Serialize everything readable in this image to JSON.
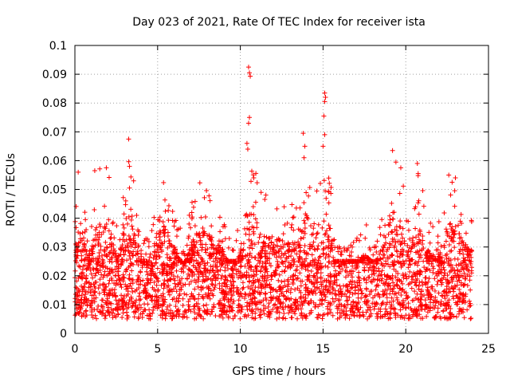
{
  "chart_data": {
    "type": "scatter",
    "title": "Day 023 of 2021, Rate Of TEC Index for receiver ista",
    "xlabel": "GPS time / hours",
    "ylabel": "ROTI / TECUs",
    "xlim": [
      0,
      25
    ],
    "ylim": [
      0,
      0.1
    ],
    "xticks": [
      0,
      5,
      10,
      15,
      20,
      25
    ],
    "yticks": [
      0,
      0.01,
      0.02,
      0.03,
      0.04,
      0.05,
      0.06,
      0.07,
      0.08,
      0.09,
      0.1
    ],
    "xtick_labels": [
      "0",
      "5",
      "10",
      "15",
      "20",
      "25"
    ],
    "ytick_labels": [
      "0",
      "0.01",
      "0.02",
      "0.03",
      "0.04",
      "0.05",
      "0.06",
      "0.07",
      "0.08",
      "0.09",
      "0.1"
    ],
    "grid": true,
    "marker": "+",
    "marker_color": "#ff0000",
    "data_x_range": [
      0,
      24
    ],
    "baseline_band": [
      0.005,
      0.025
    ],
    "envelope": [
      {
        "x": 0.0,
        "y": 0.045
      },
      {
        "x": 0.3,
        "y": 0.057
      },
      {
        "x": 0.8,
        "y": 0.037
      },
      {
        "x": 1.4,
        "y": 0.057
      },
      {
        "x": 2.0,
        "y": 0.058
      },
      {
        "x": 2.6,
        "y": 0.036
      },
      {
        "x": 3.3,
        "y": 0.0675
      },
      {
        "x": 4.0,
        "y": 0.029
      },
      {
        "x": 4.6,
        "y": 0.04
      },
      {
        "x": 5.3,
        "y": 0.057
      },
      {
        "x": 6.0,
        "y": 0.043
      },
      {
        "x": 6.6,
        "y": 0.033
      },
      {
        "x": 7.2,
        "y": 0.049
      },
      {
        "x": 7.7,
        "y": 0.055
      },
      {
        "x": 8.3,
        "y": 0.048
      },
      {
        "x": 9.0,
        "y": 0.04
      },
      {
        "x": 9.6,
        "y": 0.03
      },
      {
        "x": 10.2,
        "y": 0.047
      },
      {
        "x": 10.6,
        "y": 0.0925
      },
      {
        "x": 11.2,
        "y": 0.05
      },
      {
        "x": 11.8,
        "y": 0.048
      },
      {
        "x": 12.4,
        "y": 0.048
      },
      {
        "x": 13.0,
        "y": 0.045
      },
      {
        "x": 13.6,
        "y": 0.045
      },
      {
        "x": 14.0,
        "y": 0.0695
      },
      {
        "x": 14.6,
        "y": 0.05
      },
      {
        "x": 15.1,
        "y": 0.0835
      },
      {
        "x": 15.7,
        "y": 0.033
      },
      {
        "x": 16.3,
        "y": 0.03
      },
      {
        "x": 16.9,
        "y": 0.032
      },
      {
        "x": 17.5,
        "y": 0.04
      },
      {
        "x": 18.1,
        "y": 0.034
      },
      {
        "x": 18.7,
        "y": 0.045
      },
      {
        "x": 19.2,
        "y": 0.0635
      },
      {
        "x": 19.7,
        "y": 0.057
      },
      {
        "x": 20.2,
        "y": 0.038
      },
      {
        "x": 20.7,
        "y": 0.059
      },
      {
        "x": 21.3,
        "y": 0.043
      },
      {
        "x": 21.9,
        "y": 0.036
      },
      {
        "x": 22.5,
        "y": 0.055
      },
      {
        "x": 23.0,
        "y": 0.054
      },
      {
        "x": 23.5,
        "y": 0.045
      },
      {
        "x": 24.0,
        "y": 0.042
      }
    ],
    "outliers": [
      {
        "x": 0.2,
        "y": 0.056
      },
      {
        "x": 1.2,
        "y": 0.0565
      },
      {
        "x": 1.9,
        "y": 0.0575
      },
      {
        "x": 3.25,
        "y": 0.0675
      },
      {
        "x": 3.3,
        "y": 0.058
      },
      {
        "x": 3.3,
        "y": 0.0505
      },
      {
        "x": 10.5,
        "y": 0.0925
      },
      {
        "x": 10.55,
        "y": 0.0905
      },
      {
        "x": 10.6,
        "y": 0.0893
      },
      {
        "x": 10.55,
        "y": 0.075
      },
      {
        "x": 10.5,
        "y": 0.073
      },
      {
        "x": 10.4,
        "y": 0.066
      },
      {
        "x": 10.45,
        "y": 0.064
      },
      {
        "x": 13.8,
        "y": 0.0695
      },
      {
        "x": 13.9,
        "y": 0.065
      },
      {
        "x": 13.85,
        "y": 0.061
      },
      {
        "x": 15.1,
        "y": 0.0835
      },
      {
        "x": 15.15,
        "y": 0.082
      },
      {
        "x": 15.1,
        "y": 0.0805
      },
      {
        "x": 15.05,
        "y": 0.0755
      },
      {
        "x": 15.1,
        "y": 0.069
      },
      {
        "x": 15.0,
        "y": 0.065
      },
      {
        "x": 19.2,
        "y": 0.0635
      },
      {
        "x": 19.7,
        "y": 0.0575
      },
      {
        "x": 20.7,
        "y": 0.059
      },
      {
        "x": 20.75,
        "y": 0.0555
      },
      {
        "x": 22.6,
        "y": 0.055
      },
      {
        "x": 23.0,
        "y": 0.054
      }
    ]
  }
}
